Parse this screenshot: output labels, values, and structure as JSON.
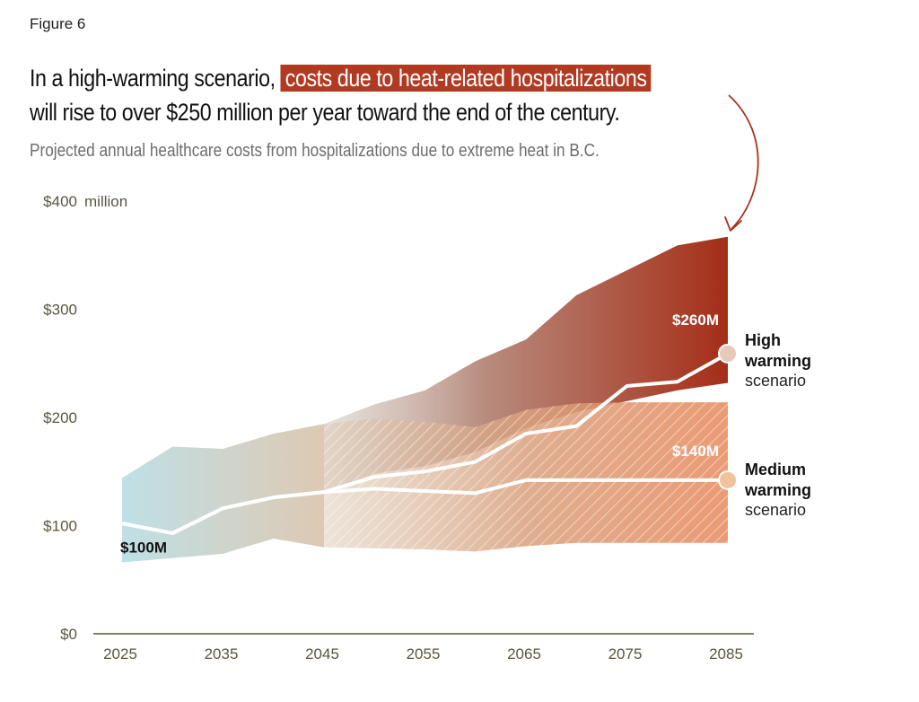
{
  "figure_label": "Figure 6",
  "headline": {
    "part1": "In a high-warming scenario, ",
    "highlight": "costs due to heat-related hospitalizations",
    "part2": " will rise to over $250 million per year toward the end of the century."
  },
  "subtitle": "Projected annual healthcare costs from hospitalizations due to extreme heat in B.C.",
  "colors": {
    "high": "#a8321b",
    "medium": "#e08a5e",
    "early": "#bfe0e6",
    "line": "#ffffff",
    "axis": "#5b5540",
    "highlight_bg": "#b23a22"
  },
  "chart_data": {
    "type": "area",
    "y_unit_label": "million",
    "ylim": [
      0,
      400
    ],
    "xlim": [
      2025,
      2085
    ],
    "y_ticks": [
      {
        "value": 0,
        "label": "$0"
      },
      {
        "value": 100,
        "label": "$100"
      },
      {
        "value": 200,
        "label": "$200"
      },
      {
        "value": 300,
        "label": "$300"
      },
      {
        "value": 400,
        "label": "$400"
      }
    ],
    "x_ticks": [
      2025,
      2035,
      2045,
      2055,
      2065,
      2075,
      2085
    ],
    "grid": false,
    "series": [
      {
        "name": "High warming scenario",
        "label_line1": "High",
        "label_line2": "warming",
        "label_line3": "scenario",
        "end_label": "$260M",
        "central": {
          "x": [
            2025,
            2030,
            2035,
            2040,
            2045,
            2050,
            2055,
            2060,
            2065,
            2070,
            2075,
            2080,
            2085
          ],
          "y": [
            102,
            93,
            116,
            126,
            131,
            145,
            150,
            159,
            185,
            192,
            229,
            233,
            259
          ]
        },
        "upper": {
          "x": [
            2045,
            2050,
            2055,
            2060,
            2065,
            2070,
            2075,
            2080,
            2085
          ],
          "y": [
            194,
            212,
            225,
            252,
            272,
            313,
            336,
            359,
            367
          ]
        },
        "lower": {
          "x": [
            2045,
            2050,
            2055,
            2060,
            2065,
            2070,
            2075,
            2080,
            2085
          ],
          "y": [
            131,
            148,
            155,
            168,
            190,
            205,
            215,
            225,
            232
          ]
        }
      },
      {
        "name": "Medium warming scenario",
        "label_line1": "Medium",
        "label_line2": "warming",
        "label_line3": "scenario",
        "end_label": "$140M",
        "central": {
          "x": [
            2025,
            2030,
            2035,
            2040,
            2045,
            2050,
            2055,
            2060,
            2065,
            2070,
            2075,
            2080,
            2085
          ],
          "y": [
            102,
            93,
            116,
            126,
            131,
            134,
            132,
            130,
            142,
            142,
            142,
            142,
            142
          ]
        },
        "upper": {
          "x": [
            2045,
            2050,
            2055,
            2060,
            2065,
            2070,
            2075,
            2080,
            2085
          ],
          "y": [
            194,
            199,
            196,
            191,
            207,
            213,
            214,
            214,
            214
          ]
        },
        "lower": {
          "x": [
            2045,
            2050,
            2055,
            2060,
            2065,
            2070,
            2075,
            2080,
            2085
          ],
          "y": [
            80,
            79,
            78,
            76,
            81,
            84,
            84,
            84,
            84
          ]
        }
      }
    ],
    "early_band": {
      "x": [
        2025,
        2030,
        2035,
        2040,
        2045
      ],
      "upper": [
        144,
        173,
        171,
        185,
        194
      ],
      "lower": [
        66,
        70,
        74,
        88,
        80
      ]
    },
    "start_label": "$100M",
    "start_value": 100
  }
}
